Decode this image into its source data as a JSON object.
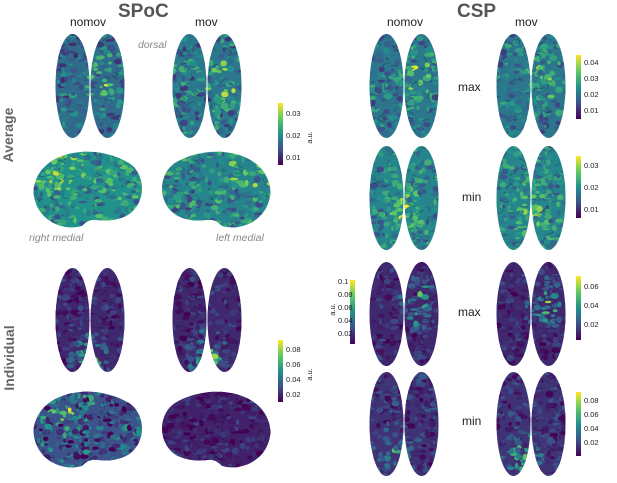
{
  "spoc": {
    "title": "SPoC",
    "col_left": "nomov",
    "col_right": "mov",
    "view_dorsal": "dorsal",
    "view_right_medial": "right medial",
    "view_left_medial": "left medial",
    "row_average": "Average",
    "row_individual": "Individual",
    "cbar_average": {
      "ticks": [
        "0.03",
        "0.02",
        "0.01"
      ],
      "unit": "a.u."
    },
    "cbar_individual": {
      "ticks": [
        "0.08",
        "0.06",
        "0.04",
        "0.02"
      ],
      "unit": "a.u."
    }
  },
  "csp": {
    "title": "CSP",
    "col_left": "nomov",
    "col_right": "mov",
    "row_labels": [
      "max",
      "min",
      "max",
      "min"
    ],
    "cbar_avg_max": {
      "ticks": [
        "0.04",
        "0.03",
        "0.02",
        "0.01"
      ],
      "unit": "a.u."
    },
    "cbar_avg_min": {
      "ticks": [
        "0.03",
        "0.02",
        "0.01"
      ],
      "unit": "a.u."
    },
    "cbar_ind_max_left": {
      "ticks": [
        "0.1",
        "0.08",
        "0.06",
        "0.04",
        "0.02"
      ],
      "unit": "a.u."
    },
    "cbar_ind_max_right": {
      "ticks": [
        "0.06",
        "0.04",
        "0.02"
      ],
      "unit": "a.u."
    },
    "cbar_ind_min": {
      "ticks": [
        "0.08",
        "0.06",
        "0.04",
        "0.02"
      ],
      "unit": "a.u."
    }
  },
  "colors": {
    "colormap": [
      "#440154",
      "#3b528b",
      "#21918c",
      "#5ec962",
      "#fde725"
    ]
  }
}
